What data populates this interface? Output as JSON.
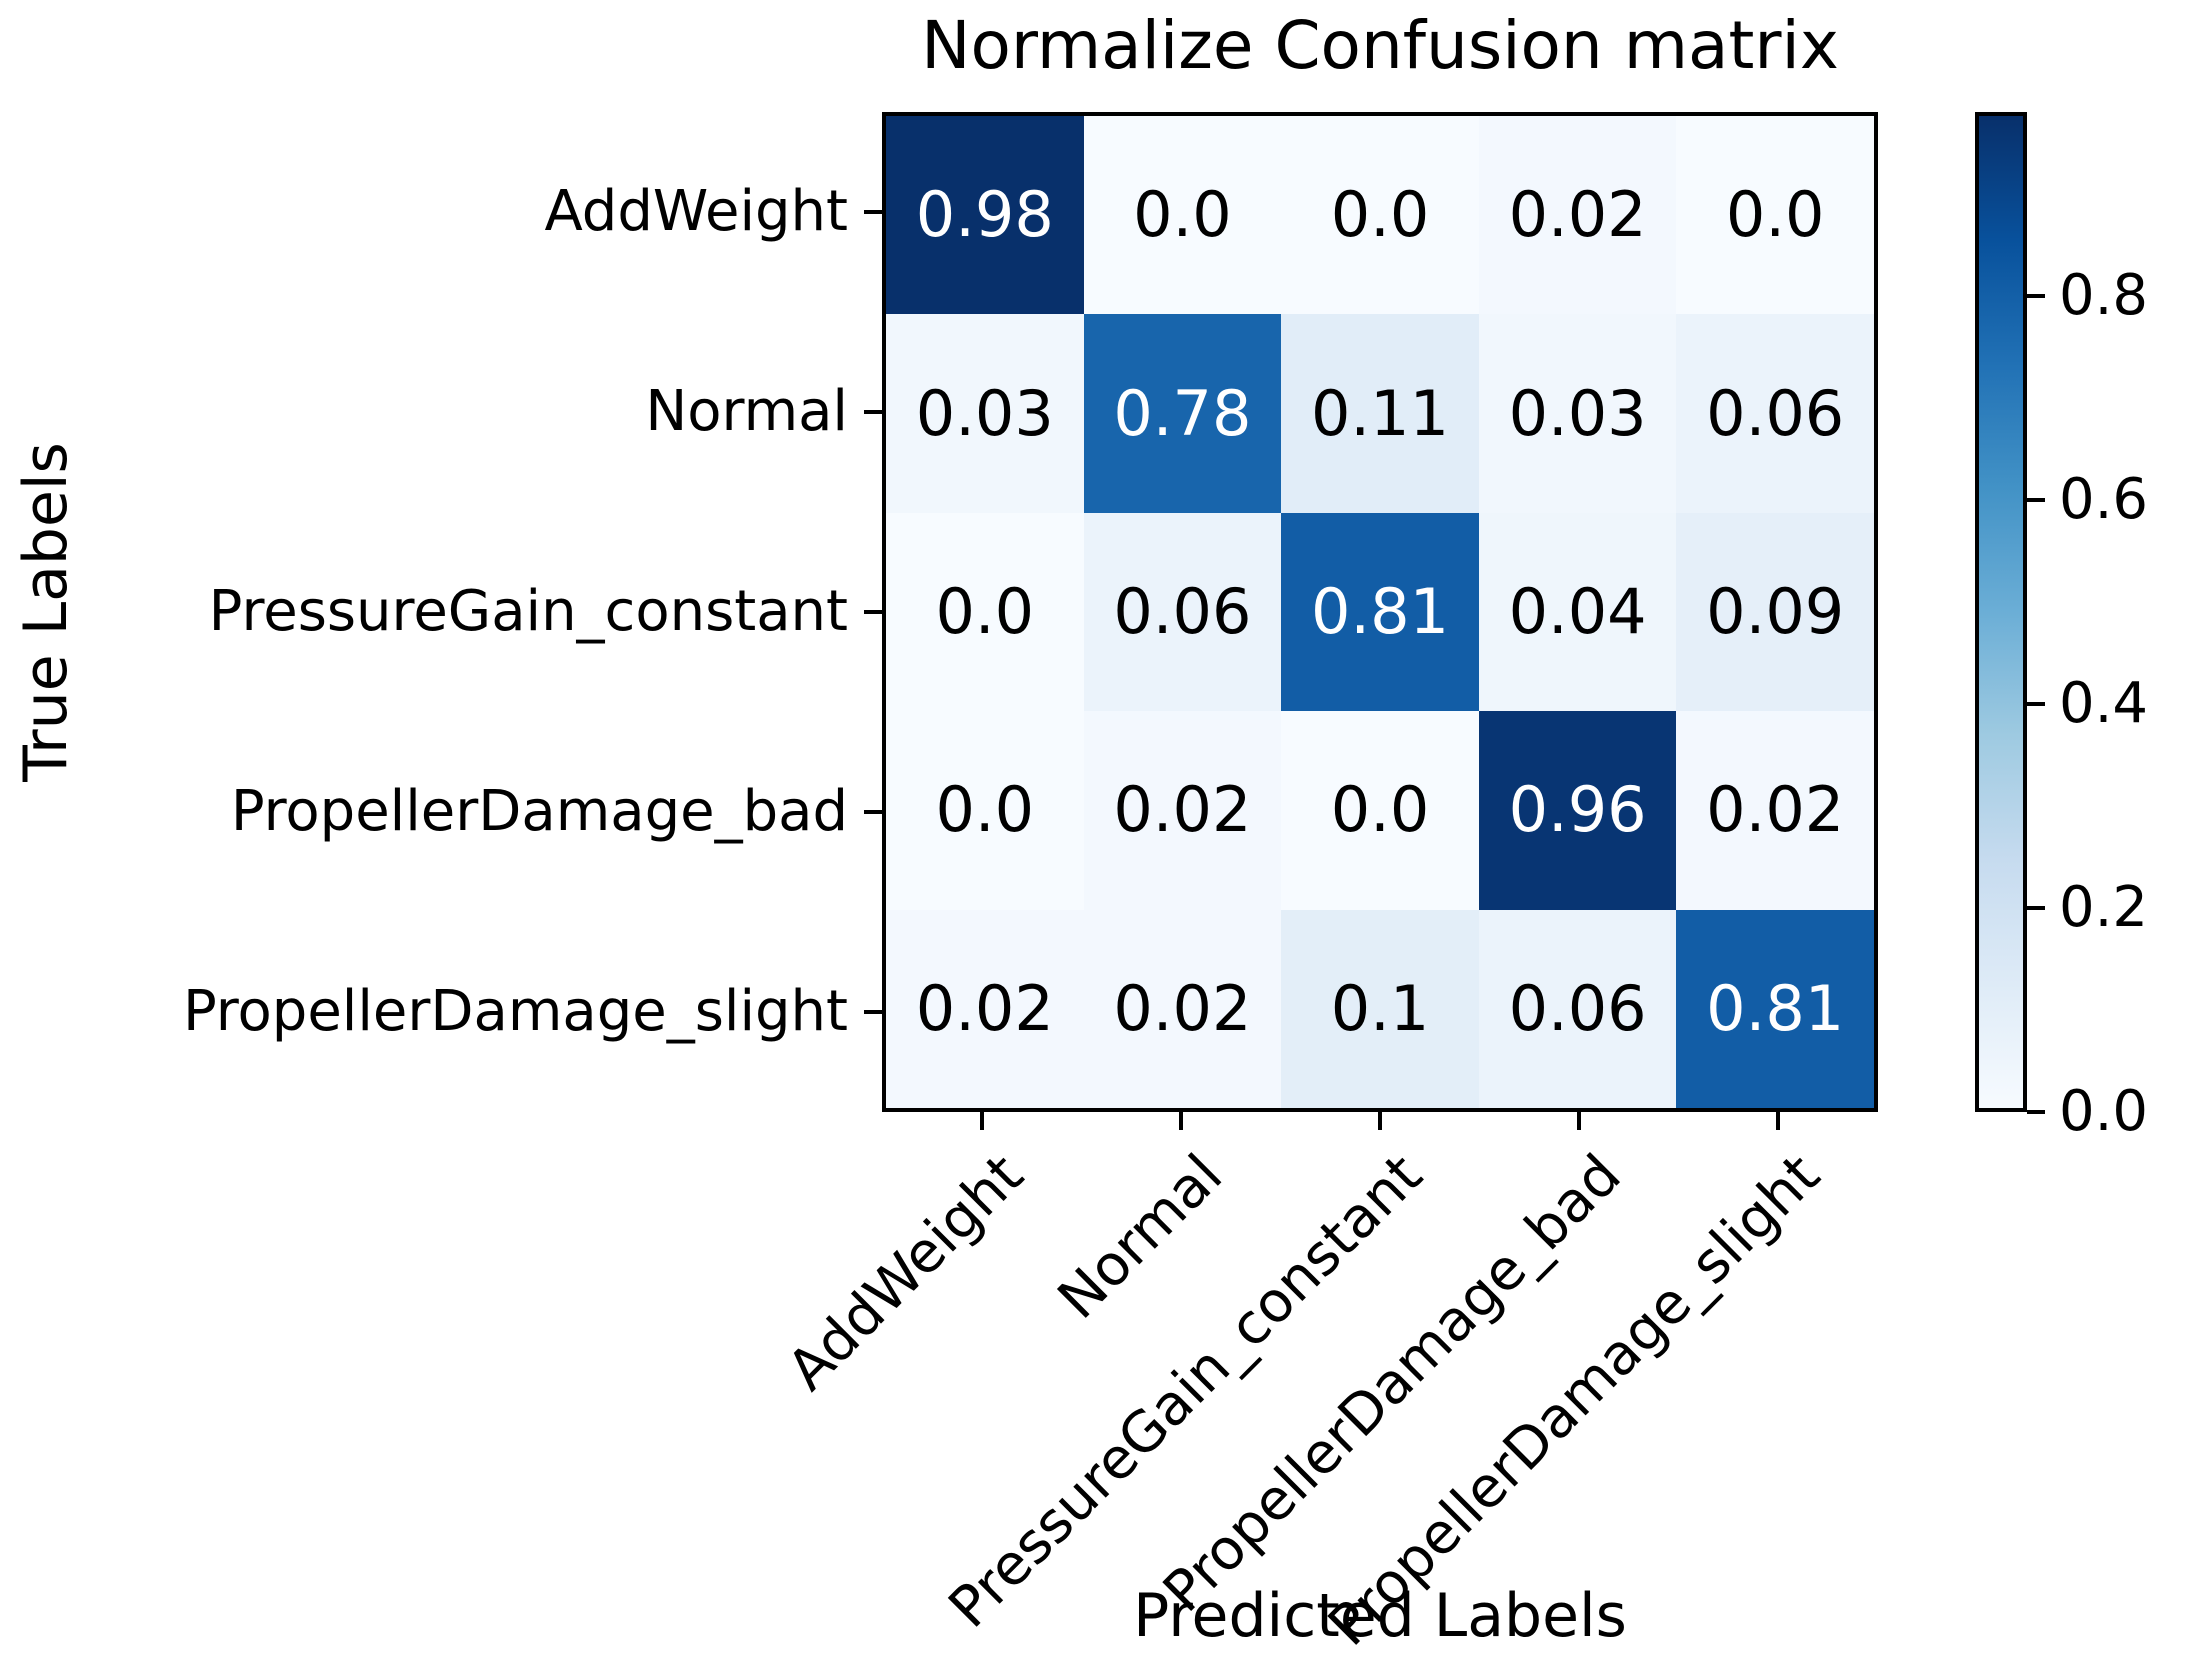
{
  "figure": {
    "background": "#ffffff",
    "text_color": "#000000"
  },
  "chart_data": {
    "type": "heatmap",
    "title": "Normalize Confusion matrix",
    "xlabel": "Predicted Labels",
    "ylabel": "True Labels",
    "categories": [
      "AddWeight",
      "Normal",
      "PressureGain_constant",
      "PropellerDamage_bad",
      "PropellerDamage_slight"
    ],
    "row_labels": [
      "AddWeight",
      "Normal",
      "PressureGain_constant",
      "PropellerDamage_bad",
      "PropellerDamage_slight"
    ],
    "col_labels": [
      "AddWeight",
      "Normal",
      "PressureGain_constant",
      "PropellerDamage_bad",
      "PropellerDamage_slight"
    ],
    "values": [
      [
        "0.98",
        "0.0",
        "0.0",
        "0.02",
        "0.0"
      ],
      [
        "0.03",
        "0.78",
        "0.11",
        "0.03",
        "0.06"
      ],
      [
        "0.0",
        "0.06",
        "0.81",
        "0.04",
        "0.09"
      ],
      [
        "0.0",
        "0.02",
        "0.0",
        "0.96",
        "0.02"
      ],
      [
        "0.02",
        "0.02",
        "0.1",
        "0.06",
        "0.81"
      ]
    ],
    "colormap": {
      "name": "Blues",
      "vmin": 0.0,
      "vmax": 0.98,
      "stops": [
        {
          "t": 0.0,
          "hex": "#f7fbff"
        },
        {
          "t": 0.125,
          "hex": "#deebf7"
        },
        {
          "t": 0.25,
          "hex": "#c6dbef"
        },
        {
          "t": 0.375,
          "hex": "#9ecae1"
        },
        {
          "t": 0.5,
          "hex": "#6baed6"
        },
        {
          "t": 0.625,
          "hex": "#4292c6"
        },
        {
          "t": 0.75,
          "hex": "#2171b5"
        },
        {
          "t": 0.875,
          "hex": "#08519c"
        },
        {
          "t": 1.0,
          "hex": "#08306b"
        }
      ],
      "cell_text_high": "#ffffff",
      "cell_text_low": "#000000"
    },
    "colorbar": {
      "position": "right",
      "ticks": [
        "0.8",
        "0.6",
        "0.4",
        "0.2",
        "0.0"
      ]
    },
    "grid": false,
    "x_tick_rotation_deg": 45
  }
}
